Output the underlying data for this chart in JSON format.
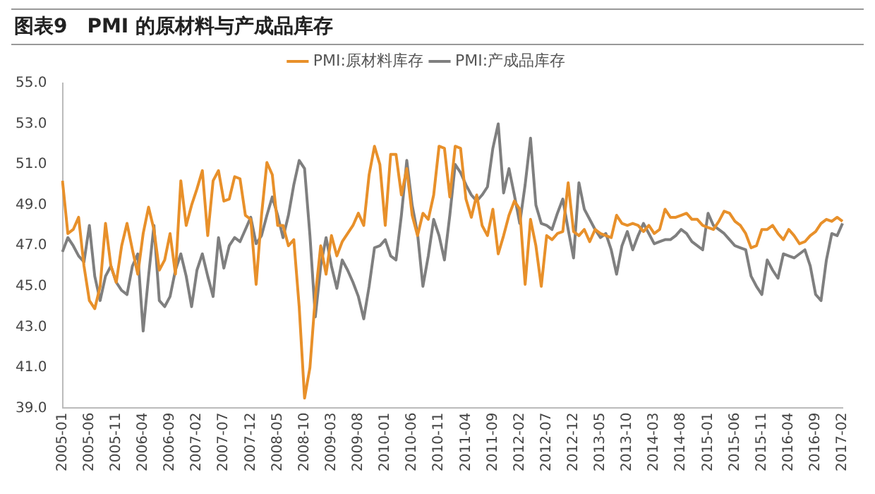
{
  "chart_data": {
    "type": "line",
    "title": "图表9　PMI 的原材料与产成品库存",
    "categories": [
      "2005-01",
      null,
      null,
      null,
      null,
      "2005-06",
      null,
      null,
      null,
      null,
      "2005-11",
      null,
      null,
      null,
      null,
      "2006-04",
      null,
      null,
      null,
      null,
      "2006-09",
      null,
      null,
      null,
      null,
      "2007-02",
      null,
      null,
      null,
      null,
      "2007-07",
      null,
      null,
      null,
      null,
      "2007-12",
      null,
      null,
      null,
      null,
      "2008-05",
      null,
      null,
      null,
      null,
      "2008-10",
      null,
      null,
      null,
      null,
      "2009-03",
      null,
      null,
      null,
      null,
      "2009-08",
      null,
      null,
      null,
      null,
      "2010-01",
      null,
      null,
      null,
      null,
      "2010-06",
      null,
      null,
      null,
      null,
      "2010-11",
      null,
      null,
      null,
      null,
      "2011-04",
      null,
      null,
      null,
      null,
      "2011-09",
      null,
      null,
      null,
      null,
      "2012-02",
      null,
      null,
      null,
      null,
      "2012-07",
      null,
      null,
      null,
      null,
      "2012-12",
      null,
      null,
      null,
      null,
      "2013-05",
      null,
      null,
      null,
      null,
      "2013-10",
      null,
      null,
      null,
      null,
      "2014-03",
      null,
      null,
      null,
      null,
      "2014-08",
      null,
      null,
      null,
      null,
      "2015-01",
      null,
      null,
      null,
      null,
      "2015-06",
      null,
      null,
      null,
      null,
      "2015-11",
      null,
      null,
      null,
      null,
      "2016-04",
      null,
      null,
      null,
      null,
      "2016-09",
      null,
      null,
      null,
      null,
      "2017-02"
    ],
    "series": [
      {
        "name": "PMI:原材料库存",
        "color": "#e8902a",
        "values": [
          50.2,
          47.6,
          47.8,
          48.4,
          46.0,
          44.3,
          43.9,
          45.0,
          48.1,
          46.0,
          45.2,
          47.0,
          48.1,
          46.8,
          45.6,
          47.6,
          48.9,
          47.8,
          45.8,
          46.3,
          47.6,
          45.6,
          50.2,
          48.0,
          49.0,
          49.8,
          50.7,
          47.5,
          50.2,
          50.7,
          49.2,
          49.3,
          50.4,
          50.3,
          48.5,
          48.3,
          45.1,
          48.5,
          51.1,
          50.5,
          48.0,
          48.0,
          47.0,
          47.3,
          44.0,
          39.5,
          41.0,
          44.5,
          47.0,
          45.6,
          47.5,
          46.5,
          47.2,
          47.6,
          48.0,
          48.6,
          48.0,
          50.5,
          51.9,
          51.0,
          48.0,
          51.5,
          51.5,
          49.5,
          50.8,
          48.5,
          47.5,
          48.6,
          48.3,
          49.5,
          51.9,
          51.8,
          49.4,
          51.9,
          51.8,
          49.3,
          48.4,
          49.5,
          48.0,
          47.5,
          48.8,
          46.6,
          47.5,
          48.5,
          49.2,
          48.8,
          45.1,
          48.3,
          47.0,
          45.0,
          47.5,
          47.3,
          47.6,
          47.7,
          50.1,
          47.7,
          47.5,
          47.8,
          47.2,
          47.8,
          47.6,
          47.5,
          47.4,
          48.5,
          48.1,
          48.0,
          48.1,
          48.0,
          47.7,
          48.0,
          47.6,
          47.8,
          48.8,
          48.4,
          48.4,
          48.5,
          48.6,
          48.3,
          48.3,
          48.0,
          47.9,
          47.8,
          48.2,
          48.7,
          48.6,
          48.2,
          48.0,
          47.6,
          46.9,
          47.0,
          47.8,
          47.8,
          48.0,
          47.6,
          47.3,
          47.8,
          47.5,
          47.1,
          47.2,
          47.5,
          47.7,
          48.1,
          48.3,
          48.2,
          48.4,
          48.2
        ]
      },
      {
        "name": "PMI:产成品库存",
        "color": "#7f7f7f",
        "values": [
          46.7,
          47.4,
          47.0,
          46.5,
          46.2,
          48.0,
          45.5,
          44.3,
          45.5,
          46.0,
          45.2,
          44.8,
          44.6,
          46.0,
          46.6,
          42.8,
          45.5,
          48.0,
          44.3,
          44.0,
          44.5,
          45.8,
          46.6,
          45.5,
          44.0,
          45.8,
          46.6,
          45.5,
          44.5,
          47.4,
          45.9,
          47.0,
          47.4,
          47.2,
          47.8,
          48.4,
          47.1,
          47.5,
          48.5,
          49.4,
          48.5,
          47.4,
          48.5,
          50.0,
          51.2,
          50.8,
          47.5,
          43.5,
          46.0,
          47.4,
          46.0,
          44.9,
          46.3,
          45.8,
          45.2,
          44.5,
          43.4,
          45.0,
          46.9,
          47.0,
          47.3,
          46.5,
          46.3,
          48.5,
          51.2,
          49.0,
          47.6,
          45.0,
          46.5,
          48.3,
          47.5,
          46.3,
          48.5,
          51.0,
          50.6,
          50.0,
          49.5,
          49.2,
          49.5,
          49.9,
          51.8,
          53.0,
          49.6,
          50.8,
          49.5,
          48.1,
          50.0,
          52.3,
          49.0,
          48.1,
          48.0,
          47.8,
          48.6,
          49.3,
          47.8,
          46.4,
          50.1,
          48.8,
          48.3,
          47.8,
          47.4,
          47.6,
          46.8,
          45.6,
          47.0,
          47.7,
          46.8,
          47.5,
          48.1,
          47.6,
          47.1,
          47.2,
          47.3,
          47.3,
          47.5,
          47.8,
          47.6,
          47.2,
          47.0,
          46.8,
          48.6,
          48.0,
          47.8,
          47.6,
          47.3,
          47.0,
          46.9,
          46.8,
          45.5,
          45.0,
          44.6,
          46.3,
          45.8,
          45.4,
          46.6,
          46.5,
          46.4,
          46.6,
          46.8,
          46.0,
          44.6,
          44.3,
          46.3,
          47.6,
          47.5,
          48.1
        ]
      }
    ],
    "ylim": [
      39,
      55
    ],
    "yticks": [
      {
        "value": 39,
        "label": "39.0"
      },
      {
        "value": 41,
        "label": "41.0"
      },
      {
        "value": 43,
        "label": "43.0"
      },
      {
        "value": 45,
        "label": "45.0"
      },
      {
        "value": 47,
        "label": "47.0"
      },
      {
        "value": 49,
        "label": "49.0"
      },
      {
        "value": 51,
        "label": "51.0"
      },
      {
        "value": 53,
        "label": "53.0"
      },
      {
        "value": 55,
        "label": "55.0"
      }
    ],
    "grid": false,
    "legend": "top",
    "marker": "none",
    "line_style": "solid"
  }
}
